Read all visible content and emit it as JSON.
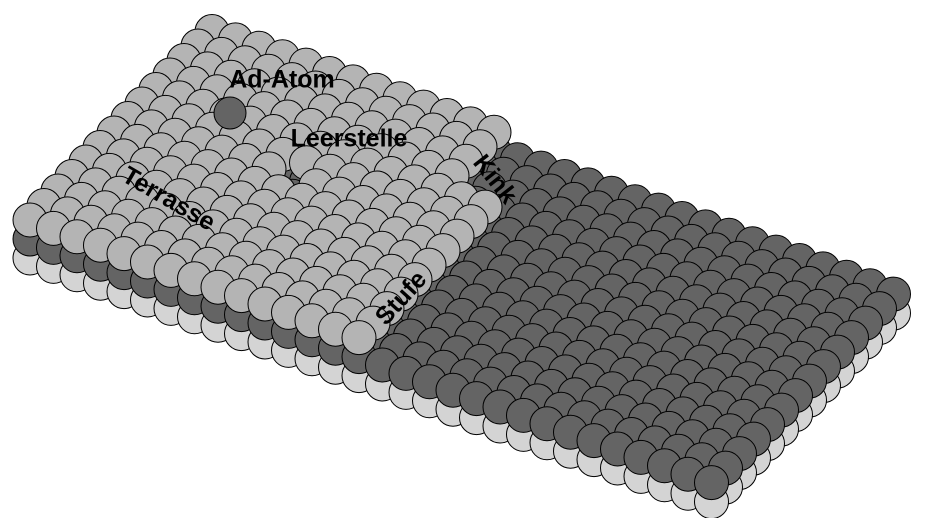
{
  "labels": {
    "ad_atom": "Ad-Atom",
    "vacancy": "Leerstelle",
    "terrace": "Terrasse",
    "kink": "Kink",
    "step": "Stufe"
  }
}
